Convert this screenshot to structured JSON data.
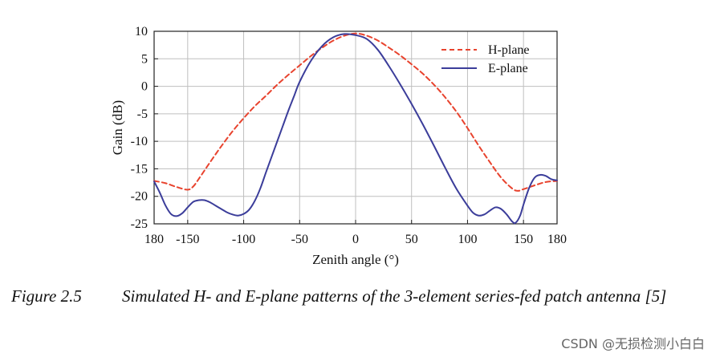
{
  "chart_data": {
    "type": "line",
    "xlabel": "Zenith angle (°)",
    "ylabel": "Gain (dB)",
    "xlim": [
      -180,
      180
    ],
    "ylim": [
      -25,
      10
    ],
    "xticks": [
      -180,
      -150,
      -100,
      -50,
      0,
      50,
      100,
      150,
      180
    ],
    "xtick_labels": [
      "180",
      "-150",
      "-100",
      "-50",
      "0",
      "50",
      "100",
      "150",
      "180"
    ],
    "yticks": [
      10,
      5,
      0,
      -5,
      -10,
      -15,
      -20,
      -25
    ],
    "grid": true,
    "legend_position": "top-right",
    "series": [
      {
        "name": "H-plane",
        "style": "dashed",
        "color": "#e8432e",
        "x": [
          -180,
          -170,
          -160,
          -150,
          -145,
          -140,
          -130,
          -120,
          -110,
          -100,
          -90,
          -80,
          -70,
          -60,
          -50,
          -40,
          -30,
          -20,
          -10,
          0,
          10,
          20,
          30,
          40,
          50,
          60,
          70,
          80,
          90,
          100,
          110,
          120,
          130,
          140,
          145,
          150,
          160,
          170,
          180
        ],
        "y": [
          -17.2,
          -17.6,
          -18.3,
          -18.8,
          -18.2,
          -16.8,
          -13.8,
          -10.9,
          -8.2,
          -5.8,
          -3.6,
          -1.7,
          0.3,
          2.1,
          3.8,
          5.5,
          7.0,
          8.3,
          9.2,
          9.6,
          9.2,
          8.3,
          7.0,
          5.6,
          4.0,
          2.3,
          0.3,
          -2.0,
          -4.6,
          -7.6,
          -10.8,
          -13.8,
          -16.6,
          -18.6,
          -19.0,
          -18.7,
          -18.0,
          -17.4,
          -17.2
        ]
      },
      {
        "name": "E-plane",
        "style": "solid",
        "color": "#3b3d9a",
        "x": [
          -180,
          -175,
          -170,
          -165,
          -160,
          -155,
          -150,
          -145,
          -140,
          -135,
          -130,
          -125,
          -120,
          -115,
          -110,
          -105,
          -100,
          -95,
          -90,
          -85,
          -80,
          -75,
          -70,
          -65,
          -60,
          -55,
          -50,
          -40,
          -30,
          -20,
          -10,
          0,
          10,
          20,
          30,
          40,
          50,
          60,
          70,
          80,
          90,
          100,
          105,
          110,
          115,
          120,
          125,
          130,
          135,
          140,
          143,
          147,
          150,
          155,
          160,
          165,
          170,
          175,
          180
        ],
        "y": [
          -17.3,
          -19.3,
          -21.6,
          -23.2,
          -23.6,
          -23.1,
          -22.0,
          -21.0,
          -20.7,
          -20.7,
          -21.1,
          -21.7,
          -22.3,
          -22.9,
          -23.3,
          -23.5,
          -23.2,
          -22.4,
          -20.8,
          -18.5,
          -15.6,
          -12.8,
          -10.0,
          -7.2,
          -4.4,
          -1.8,
          0.8,
          4.6,
          7.3,
          8.9,
          9.5,
          9.3,
          8.6,
          6.6,
          3.6,
          0.3,
          -3.2,
          -6.9,
          -10.8,
          -14.8,
          -18.6,
          -21.7,
          -23.0,
          -23.5,
          -23.3,
          -22.6,
          -22.0,
          -22.3,
          -23.3,
          -24.6,
          -24.8,
          -23.5,
          -21.5,
          -18.5,
          -16.6,
          -16.1,
          -16.3,
          -16.9,
          -17.1
        ]
      }
    ]
  },
  "caption": {
    "label": "Figure 2.5",
    "text": "Simulated H- and E-plane patterns of the 3-element series-fed patch antenna [5]"
  },
  "watermark": "CSDN @无损检测小白白"
}
